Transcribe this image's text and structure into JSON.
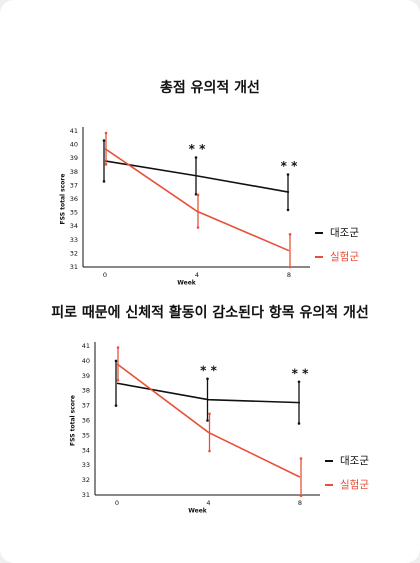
{
  "chart_data": [
    {
      "type": "line",
      "title": "총점 유의적 개선",
      "y_label": "FSS total score",
      "x_label": "Week",
      "categories": [
        "0",
        "4",
        "8"
      ],
      "ylim": [
        31,
        41
      ],
      "yticks": [
        31,
        32,
        33,
        34,
        35,
        36,
        37,
        38,
        39,
        40,
        41
      ],
      "series": [
        {
          "name": "대조군",
          "color": "#111111",
          "values": [
            38.8,
            37.7,
            36.5
          ],
          "errors": [
            1.5,
            1.35,
            1.3
          ]
        },
        {
          "name": "실험군",
          "color": "#e8503a",
          "values": [
            39.7,
            35.1,
            32.2
          ],
          "errors": [
            1.15,
            1.2,
            1.2
          ]
        }
      ],
      "annotations": [
        {
          "x": "4",
          "text": "* *"
        },
        {
          "x": "8",
          "text": "* *"
        }
      ]
    },
    {
      "type": "line",
      "title": "피로 때문에 신체적 활동이 감소된다 항목 유의적 개선",
      "y_label": "FSS total score",
      "x_label": "Week",
      "categories": [
        "0",
        "4",
        "8"
      ],
      "ylim": [
        31,
        41
      ],
      "yticks": [
        31,
        32,
        33,
        34,
        35,
        36,
        37,
        38,
        39,
        40,
        41
      ],
      "series": [
        {
          "name": "대조군",
          "color": "#111111",
          "values": [
            38.5,
            37.4,
            37.2
          ],
          "errors": [
            1.5,
            1.4,
            1.4
          ]
        },
        {
          "name": "실험군",
          "color": "#e8503a",
          "values": [
            39.8,
            35.2,
            32.2
          ],
          "errors": [
            1.1,
            1.25,
            1.25
          ]
        }
      ],
      "annotations": [
        {
          "x": "4",
          "text": "* *"
        },
        {
          "x": "8",
          "text": "* *"
        }
      ]
    }
  ]
}
